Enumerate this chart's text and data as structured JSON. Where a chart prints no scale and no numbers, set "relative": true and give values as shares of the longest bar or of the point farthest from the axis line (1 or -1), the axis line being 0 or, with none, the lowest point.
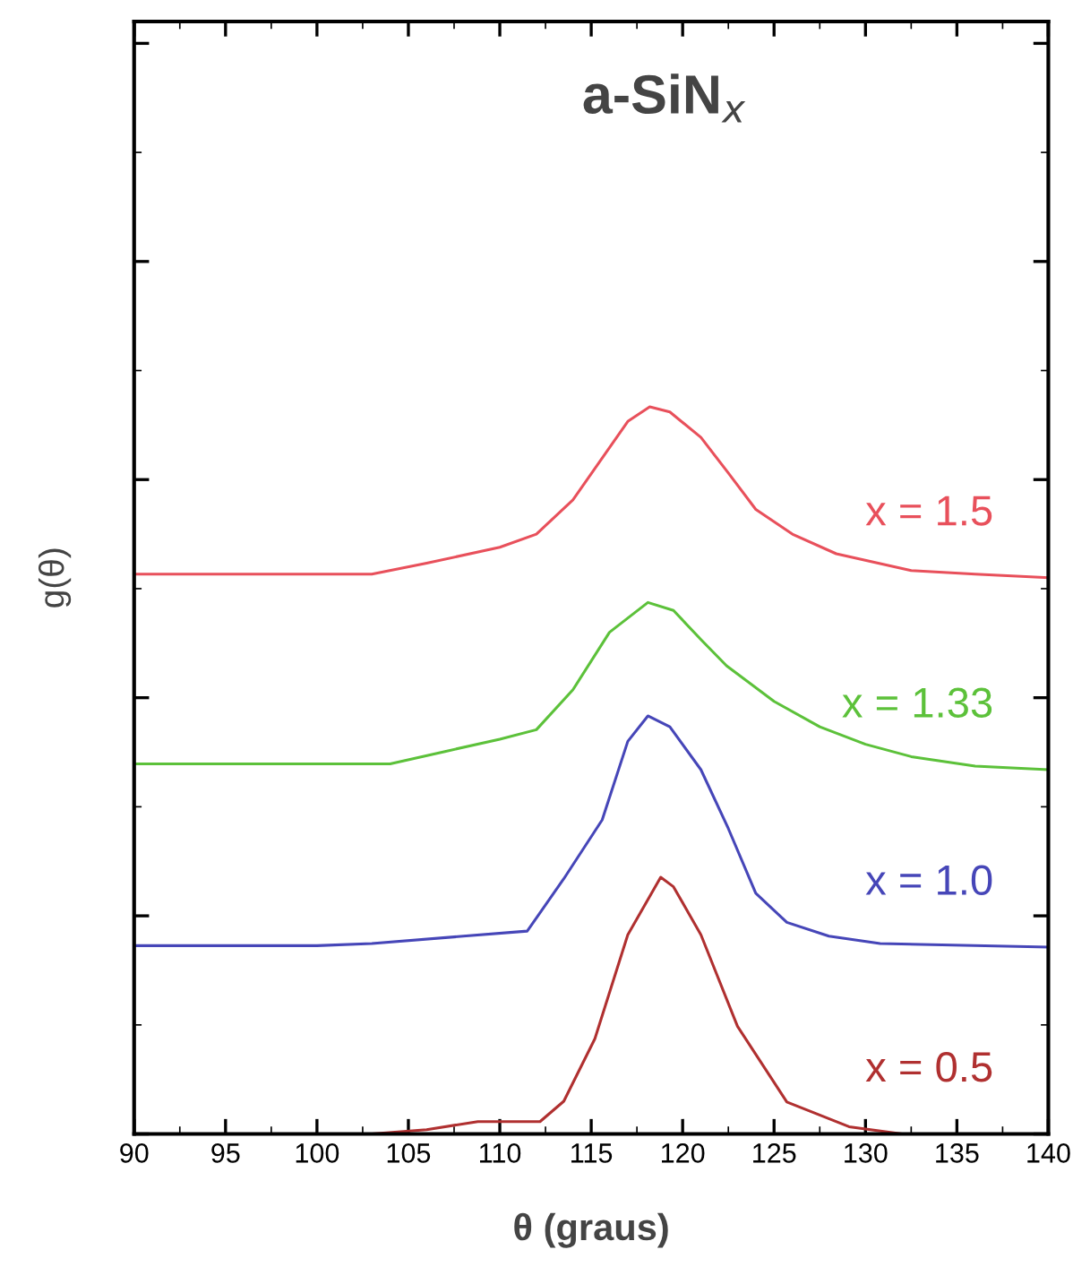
{
  "chart_data": {
    "type": "line",
    "relative": true,
    "title": "a-SiN$_{x}$",
    "xlabel": "θ (graus)",
    "ylabel": "g(θ)",
    "xlim": [
      90,
      140
    ],
    "xticks": [
      90,
      95,
      100,
      105,
      110,
      115,
      120,
      125,
      130,
      135,
      140
    ],
    "grid": false,
    "marker": "none",
    "line_style": "solid",
    "tick_labels": "x",
    "series": [
      {
        "name": "x = 1.5",
        "color": "#e8505b",
        "x": [
          90,
          100,
          103,
          106,
          110,
          112,
          114,
          115.5,
          117,
          118.2,
          119.3,
          121,
          122.5,
          124,
          126,
          128.4,
          132.5,
          136,
          140
        ],
        "values": [
          0.77,
          0.77,
          0.77,
          0.785,
          0.807,
          0.825,
          0.872,
          0.926,
          0.98,
          1.0,
          0.993,
          0.958,
          0.909,
          0.859,
          0.825,
          0.798,
          0.775,
          0.77,
          0.765
        ]
      },
      {
        "name": "x = 1.33",
        "color": "#5cc13a",
        "x": [
          90,
          100,
          104,
          107,
          110,
          112,
          114,
          116,
          118.1,
          119.5,
          121,
          122.4,
          125,
          127.5,
          130,
          132.5,
          136,
          140
        ],
        "values": [
          0.509,
          0.509,
          0.509,
          0.526,
          0.543,
          0.556,
          0.611,
          0.69,
          0.731,
          0.72,
          0.68,
          0.644,
          0.595,
          0.56,
          0.536,
          0.519,
          0.506,
          0.501
        ]
      },
      {
        "name": "x = 1.0",
        "color": "#4646b8",
        "x": [
          90,
          100,
          103,
          108,
          111.5,
          113.5,
          115.6,
          117,
          118.1,
          119.3,
          121,
          122.5,
          124,
          125.7,
          128,
          130.8,
          140
        ],
        "values": [
          0.259,
          0.259,
          0.262,
          0.272,
          0.279,
          0.351,
          0.432,
          0.54,
          0.575,
          0.56,
          0.501,
          0.42,
          0.331,
          0.291,
          0.272,
          0.262,
          0.257
        ]
      },
      {
        "name": "x = 0.5",
        "color": "#b03030",
        "x": [
          90,
          103,
          106,
          108.8,
          112.2,
          113.5,
          115.2,
          117,
          118.8,
          119.5,
          121,
          123,
          125.7,
          129.1,
          132,
          140
        ],
        "values": [
          0,
          0,
          0.006,
          0.017,
          0.017,
          0.045,
          0.131,
          0.274,
          0.353,
          0.34,
          0.274,
          0.148,
          0.044,
          0.01,
          0,
          0
        ]
      }
    ]
  }
}
